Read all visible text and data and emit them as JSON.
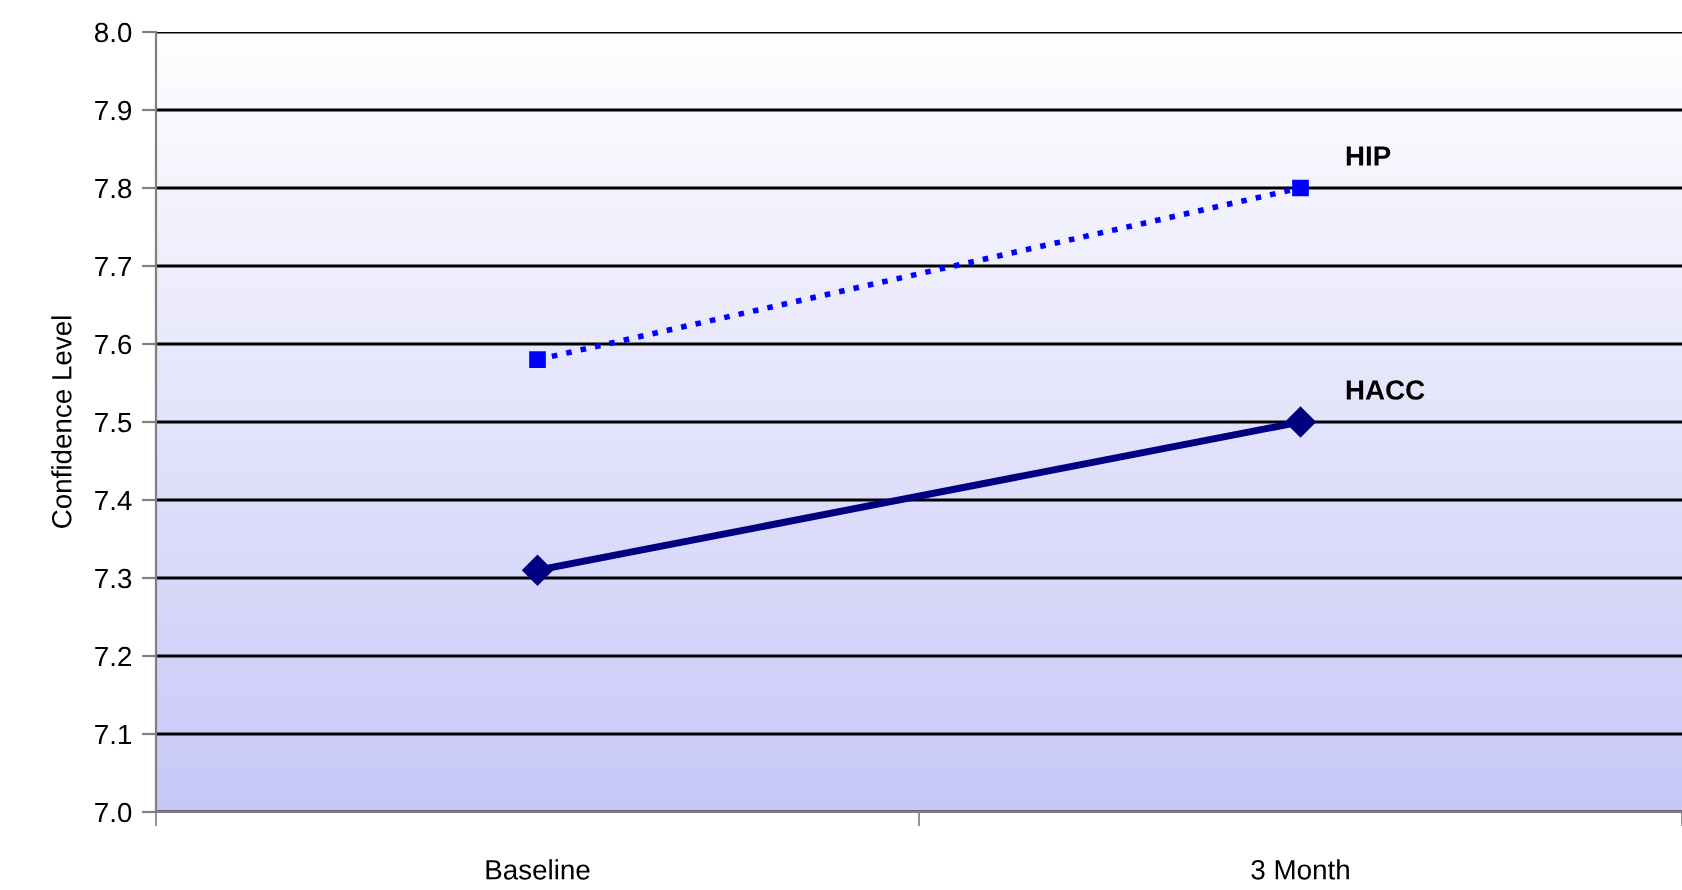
{
  "chart_data": {
    "type": "line",
    "ylabel": "Confidence Level",
    "categories": [
      "Baseline",
      "3 Month"
    ],
    "series": [
      {
        "name": "HIP",
        "color": "#0000ff",
        "values": [
          7.58,
          7.8
        ],
        "marker": "square",
        "line_style": "dotted"
      },
      {
        "name": "HACC",
        "color": "#000080",
        "values": [
          7.31,
          7.5
        ],
        "marker": "diamond",
        "line_style": "solid"
      }
    ],
    "ylim": [
      7.0,
      8.0
    ],
    "yticks": [
      {
        "value": 7.0,
        "label": "7.0"
      },
      7.1,
      7.2,
      7.3,
      7.4,
      7.5,
      7.6,
      7.7,
      7.8,
      7.9,
      {
        "value": 8.0,
        "label": "8.0"
      }
    ],
    "grid": "y",
    "legend": false
  }
}
